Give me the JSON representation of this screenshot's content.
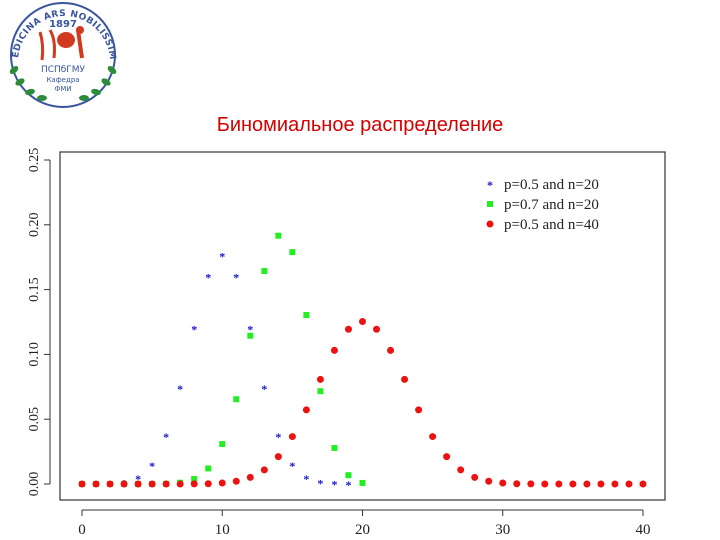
{
  "logo": {
    "arc_text": "MEDICINA ARS NOBILISSIMA",
    "year": "1897",
    "org": "ПСПбГМУ",
    "dept_line1": "Кафедра",
    "dept_line2": "ФМИ"
  },
  "slide": {
    "title": "Биномиальное распределение"
  },
  "colors": {
    "blue": "#1a1acc",
    "green": "#22ee22",
    "red": "#ee1111",
    "title": "#d40000"
  },
  "chart_data": {
    "type": "scatter",
    "title": "",
    "xlabel": "",
    "ylabel": "",
    "xlim": [
      0,
      40
    ],
    "ylim": [
      0,
      0.25
    ],
    "xticks": [
      0,
      10,
      20,
      30,
      40
    ],
    "yticks": [
      0.0,
      0.05,
      0.1,
      0.15,
      0.2,
      0.25
    ],
    "ytick_labels": [
      "0.00",
      "0.05",
      "0.10",
      "0.15",
      "0.20",
      "0.25"
    ],
    "grid": false,
    "legend_position": "top-right",
    "series": [
      {
        "name": "p=0.5 and n=20",
        "color": "#1a1acc",
        "marker": "star",
        "x": [
          0,
          1,
          2,
          3,
          4,
          5,
          6,
          7,
          8,
          9,
          10,
          11,
          12,
          13,
          14,
          15,
          16,
          17,
          18,
          19,
          20
        ],
        "y": [
          0.0,
          0.0,
          0.0002,
          0.0011,
          0.0046,
          0.0148,
          0.037,
          0.0739,
          0.1201,
          0.1602,
          0.1762,
          0.1602,
          0.1201,
          0.0739,
          0.037,
          0.0148,
          0.0046,
          0.0011,
          0.0002,
          0.0,
          0.0
        ]
      },
      {
        "name": "p=0.7 and n=20",
        "color": "#22ee22",
        "marker": "square",
        "x": [
          0,
          1,
          2,
          3,
          4,
          5,
          6,
          7,
          8,
          9,
          10,
          11,
          12,
          13,
          14,
          15,
          16,
          17,
          18,
          19,
          20
        ],
        "y": [
          0.0,
          0.0,
          0.0,
          0.0,
          0.0,
          0.0,
          0.0002,
          0.001,
          0.0039,
          0.012,
          0.0308,
          0.0654,
          0.1144,
          0.1643,
          0.1916,
          0.1789,
          0.1304,
          0.0716,
          0.0278,
          0.0068,
          0.0008
        ]
      },
      {
        "name": "p=0.5 and n=40",
        "color": "#ee1111",
        "marker": "circle",
        "x": [
          0,
          1,
          2,
          3,
          4,
          5,
          6,
          7,
          8,
          9,
          10,
          11,
          12,
          13,
          14,
          15,
          16,
          17,
          18,
          19,
          20,
          21,
          22,
          23,
          24,
          25,
          26,
          27,
          28,
          29,
          30,
          31,
          32,
          33,
          34,
          35,
          36,
          37,
          38,
          39,
          40
        ],
        "y": [
          0.0,
          0.0,
          0.0,
          0.0,
          0.0,
          0.0,
          0.0,
          0.0,
          0.0001,
          0.0002,
          0.0008,
          0.0021,
          0.0051,
          0.0109,
          0.0211,
          0.0366,
          0.0572,
          0.0807,
          0.1031,
          0.1194,
          0.1254,
          0.1194,
          0.1031,
          0.0807,
          0.0572,
          0.0366,
          0.0211,
          0.0109,
          0.0051,
          0.0021,
          0.0008,
          0.0002,
          0.0001,
          0.0,
          0.0,
          0.0,
          0.0,
          0.0,
          0.0,
          0.0,
          0.0
        ]
      }
    ]
  }
}
